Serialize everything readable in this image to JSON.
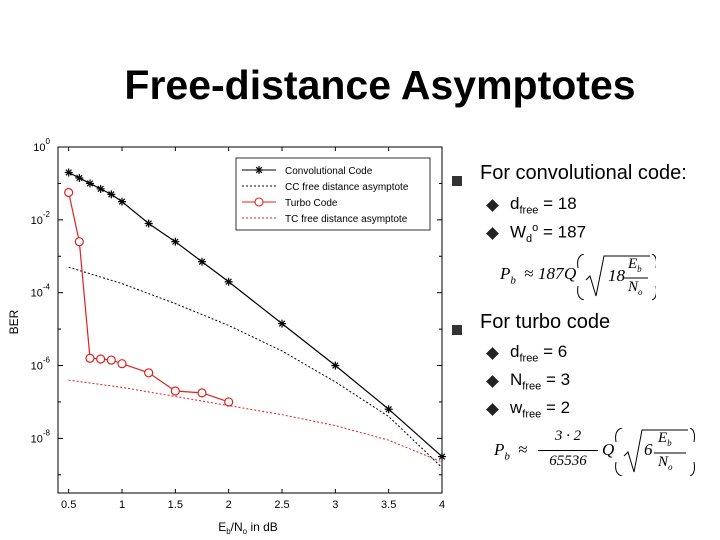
{
  "title": "Free-distance Asymptotes",
  "chart_data": {
    "type": "line",
    "xlabel_main": "E",
    "xlabel_sub1": "b",
    "xlabel_mid": "/N",
    "xlabel_sub2": "o",
    "xlabel_end": " in dB",
    "ylabel": "BER",
    "xlim": [
      0.4,
      4.0
    ],
    "ylog": true,
    "ylim_exp": [
      -9.5,
      0.0
    ],
    "xticks": [
      0.5,
      1,
      1.5,
      2,
      2.5,
      3,
      3.5,
      4
    ],
    "xtick_labels": [
      "0.5",
      "1",
      "1.5",
      "2",
      "2.5",
      "3",
      "3.5",
      "4"
    ],
    "yticks_exp": [
      0,
      -2,
      -4,
      -6,
      -8
    ],
    "ytick_base": "10",
    "ytick_exp_labels": [
      "0",
      "-2",
      "-4",
      "-6",
      "-8"
    ],
    "legend_placement": "top-right",
    "series": [
      {
        "name": "Convolutional Code",
        "color": "#000000",
        "style": "solid",
        "marker": "star",
        "x": [
          0.5,
          0.6,
          0.7,
          0.8,
          0.9,
          1.0,
          1.25,
          1.5,
          1.75,
          2.0,
          2.5,
          3.0,
          3.5,
          4.0
        ],
        "y_exp": [
          -0.7,
          -0.85,
          -1.0,
          -1.15,
          -1.3,
          -1.5,
          -2.1,
          -2.6,
          -3.15,
          -3.7,
          -4.85,
          -6.0,
          -7.2,
          -8.5
        ]
      },
      {
        "name": "CC free distance asymptote",
        "color": "#000000",
        "style": "dotted",
        "marker": "none",
        "x": [
          0.5,
          1.0,
          1.5,
          2.0,
          2.5,
          3.0,
          3.5,
          4.0
        ],
        "y_exp": [
          -3.3,
          -3.75,
          -4.3,
          -4.9,
          -5.6,
          -6.45,
          -7.4,
          -8.8
        ]
      },
      {
        "name": "Turbo Code",
        "color": "#e02020",
        "style": "solid",
        "marker": "circle",
        "x": [
          0.5,
          0.6,
          0.7,
          0.8,
          0.9,
          1.0,
          1.25,
          1.5,
          1.75,
          2.0
        ],
        "y_exp": [
          -1.25,
          -2.6,
          -5.8,
          -5.82,
          -5.85,
          -5.95,
          -6.2,
          -6.7,
          -6.75,
          -7.0
        ]
      },
      {
        "name": "TC free distance asymptote",
        "color": "#e02020",
        "style": "dotted",
        "marker": "none",
        "x": [
          0.5,
          1.0,
          1.5,
          2.0,
          2.5,
          3.0,
          3.5,
          4.0
        ],
        "y_exp": [
          -6.4,
          -6.6,
          -6.85,
          -7.1,
          -7.35,
          -7.65,
          -8.05,
          -8.65
        ]
      }
    ]
  },
  "bullets": {
    "cc_heading": "For convolutional code:",
    "cc_dfree_main": "d",
    "cc_dfree_sub": "free",
    "cc_dfree_val": " = 18",
    "cc_wd_main": "W",
    "cc_wd_sub": "d",
    "cc_wd_sup": "o",
    "cc_wd_val": " = 187",
    "tc_heading": "For turbo code",
    "tc_dfree_main": "d",
    "tc_dfree_sub": "free",
    "tc_dfree_val": " = 6",
    "tc_nfree_main": "N",
    "tc_nfree_sub": "free",
    "tc_nfree_val": " = 3",
    "tc_wfree_main": "w",
    "tc_wfree_sub": "free",
    "tc_wfree_val": " = 2"
  },
  "equations": {
    "eq1_lhs": "P",
    "eq1_lhs_sub": "b",
    "eq1_approx": "≈",
    "eq1_coef": "187",
    "eq1_Q": "Q",
    "eq1_rad_coef": "18",
    "eq1_num": "E",
    "eq1_num_sub": "b",
    "eq1_den": "N",
    "eq1_den_sub": "o",
    "eq2_lhs": "P",
    "eq2_lhs_sub": "b",
    "eq2_approx": "≈",
    "eq2_frac_num": "3 · 2",
    "eq2_frac_den": "65536",
    "eq2_Q": "Q",
    "eq2_rad_coef": "6",
    "eq2_num": "E",
    "eq2_num_sub": "b",
    "eq2_den": "N",
    "eq2_den_sub": "o"
  }
}
